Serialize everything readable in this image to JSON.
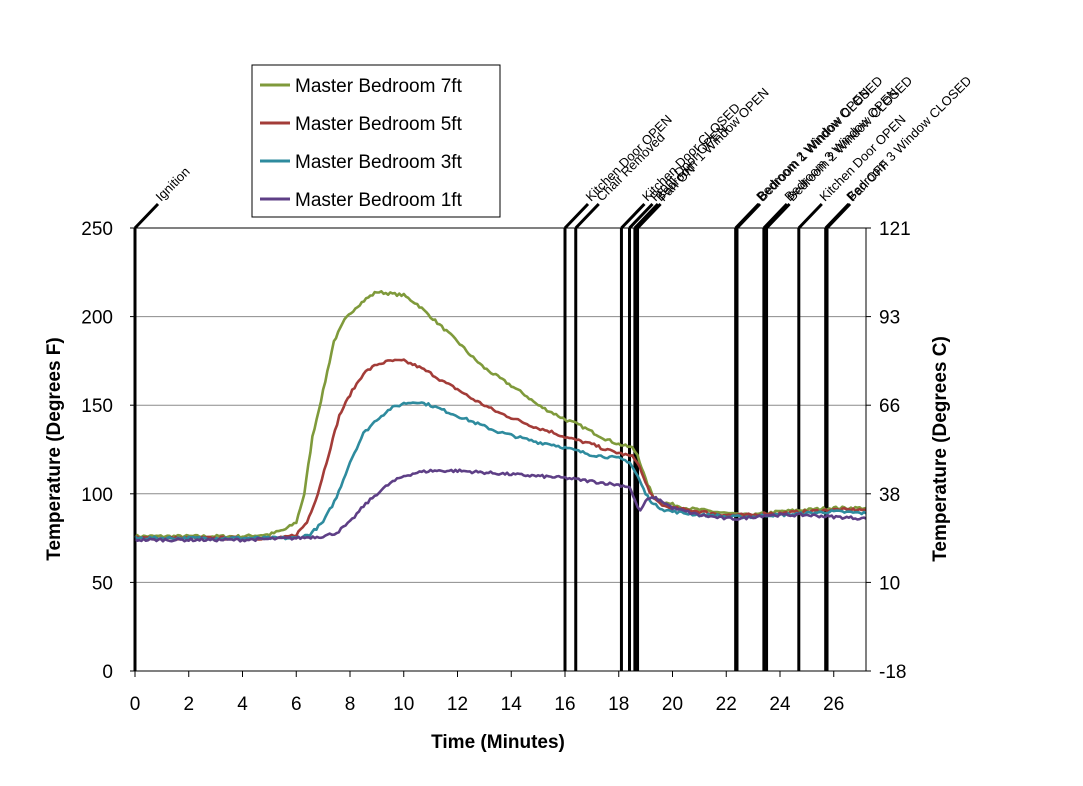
{
  "chart_data": {
    "type": "line",
    "xlabel": "Time (Minutes)",
    "ylabel": "Temperature (Degrees F)",
    "y2label": "Temperature (Degrees C)",
    "xlim": [
      0,
      27.2
    ],
    "ylim": [
      0,
      250
    ],
    "x_ticks": [
      0,
      2,
      4,
      6,
      8,
      10,
      12,
      14,
      16,
      18,
      20,
      22,
      24,
      26
    ],
    "y_ticks": [
      0,
      50,
      100,
      150,
      200,
      250
    ],
    "y2_ticks": [
      "-18",
      "10",
      "38",
      "66",
      "93",
      "121"
    ],
    "grid": "horizontal",
    "legend": "top-left",
    "series": [
      {
        "name": "Master Bedroom 7ft",
        "color": "#7F9A3B",
        "points": [
          [
            0,
            76
          ],
          [
            2,
            76
          ],
          [
            4,
            76
          ],
          [
            5,
            77
          ],
          [
            5.6,
            80
          ],
          [
            6,
            84
          ],
          [
            6.3,
            100
          ],
          [
            6.6,
            132
          ],
          [
            7,
            158
          ],
          [
            7.4,
            186
          ],
          [
            7.8,
            198
          ],
          [
            8.2,
            205
          ],
          [
            8.6,
            210
          ],
          [
            9,
            214
          ],
          [
            9.5,
            213
          ],
          [
            10,
            212
          ],
          [
            10.5,
            207
          ],
          [
            11,
            200
          ],
          [
            11.5,
            193
          ],
          [
            12,
            186
          ],
          [
            12.5,
            178
          ],
          [
            13,
            171
          ],
          [
            13.5,
            166
          ],
          [
            14,
            161
          ],
          [
            14.5,
            156
          ],
          [
            15,
            150
          ],
          [
            15.5,
            146
          ],
          [
            16,
            142
          ],
          [
            16.5,
            139
          ],
          [
            17,
            135
          ],
          [
            17.5,
            131
          ],
          [
            18,
            128
          ],
          [
            18.5,
            126
          ],
          [
            18.7,
            122
          ],
          [
            19,
            108
          ],
          [
            19.3,
            98
          ],
          [
            19.7,
            95
          ],
          [
            20,
            94
          ],
          [
            20.5,
            92
          ],
          [
            21,
            91
          ],
          [
            21.5,
            90
          ],
          [
            22,
            89
          ],
          [
            22.5,
            88
          ],
          [
            23,
            88
          ],
          [
            23.5,
            89
          ],
          [
            24,
            90
          ],
          [
            25,
            91
          ],
          [
            26,
            92
          ],
          [
            27.2,
            92
          ]
        ]
      },
      {
        "name": "Master Bedroom 5ft",
        "color": "#A33C38",
        "points": [
          [
            0,
            75
          ],
          [
            2,
            75
          ],
          [
            4,
            75
          ],
          [
            5.5,
            75
          ],
          [
            6,
            77
          ],
          [
            6.4,
            84
          ],
          [
            6.8,
            100
          ],
          [
            7.2,
            122
          ],
          [
            7.6,
            144
          ],
          [
            8,
            156
          ],
          [
            8.5,
            168
          ],
          [
            9,
            173
          ],
          [
            9.5,
            175
          ],
          [
            10,
            175
          ],
          [
            10.5,
            172
          ],
          [
            11,
            168
          ],
          [
            11.5,
            163
          ],
          [
            12,
            159
          ],
          [
            12.5,
            154
          ],
          [
            13,
            150
          ],
          [
            13.5,
            146
          ],
          [
            14,
            143
          ],
          [
            14.5,
            140
          ],
          [
            15,
            137
          ],
          [
            15.5,
            135
          ],
          [
            16,
            132
          ],
          [
            16.5,
            130
          ],
          [
            17,
            128
          ],
          [
            17.5,
            125
          ],
          [
            18,
            123
          ],
          [
            18.5,
            121
          ],
          [
            18.7,
            118
          ],
          [
            19,
            106
          ],
          [
            19.3,
            97
          ],
          [
            19.7,
            93
          ],
          [
            20,
            92
          ],
          [
            20.5,
            91
          ],
          [
            21,
            90
          ],
          [
            21.5,
            89
          ],
          [
            22,
            88
          ],
          [
            22.5,
            88
          ],
          [
            23,
            88
          ],
          [
            23.5,
            89
          ],
          [
            24,
            89
          ],
          [
            25,
            90
          ],
          [
            26,
            91
          ],
          [
            27.2,
            91
          ]
        ]
      },
      {
        "name": "Master Bedroom 3ft",
        "color": "#2E8B9E",
        "points": [
          [
            0,
            75
          ],
          [
            2,
            75
          ],
          [
            4,
            75
          ],
          [
            6,
            75
          ],
          [
            6.5,
            77
          ],
          [
            7,
            84
          ],
          [
            7.5,
            98
          ],
          [
            8,
            118
          ],
          [
            8.5,
            134
          ],
          [
            9,
            142
          ],
          [
            9.5,
            148
          ],
          [
            10,
            151
          ],
          [
            10.5,
            152
          ],
          [
            11,
            150
          ],
          [
            11.5,
            147
          ],
          [
            12,
            144
          ],
          [
            12.5,
            141
          ],
          [
            13,
            138
          ],
          [
            13.5,
            135
          ],
          [
            14,
            133
          ],
          [
            14.5,
            131
          ],
          [
            15,
            129
          ],
          [
            15.5,
            128
          ],
          [
            16,
            126
          ],
          [
            16.5,
            124
          ],
          [
            17,
            122
          ],
          [
            17.5,
            121
          ],
          [
            18,
            120
          ],
          [
            18.4,
            118
          ],
          [
            18.7,
            110
          ],
          [
            19,
            100
          ],
          [
            19.3,
            94
          ],
          [
            19.7,
            91
          ],
          [
            20,
            90
          ],
          [
            20.5,
            89
          ],
          [
            21,
            88
          ],
          [
            21.5,
            88
          ],
          [
            22,
            87
          ],
          [
            22.5,
            87
          ],
          [
            23,
            87
          ],
          [
            23.5,
            88
          ],
          [
            24,
            88
          ],
          [
            25,
            89
          ],
          [
            26,
            90
          ],
          [
            27.2,
            89
          ]
        ]
      },
      {
        "name": "Master Bedroom 1ft",
        "color": "#5E3F86",
        "points": [
          [
            0,
            74
          ],
          [
            2,
            74
          ],
          [
            4,
            74
          ],
          [
            6,
            75
          ],
          [
            7,
            76
          ],
          [
            7.5,
            78
          ],
          [
            8,
            84
          ],
          [
            8.5,
            93
          ],
          [
            9,
            100
          ],
          [
            9.5,
            106
          ],
          [
            10,
            110
          ],
          [
            10.5,
            112
          ],
          [
            11,
            113
          ],
          [
            12,
            113
          ],
          [
            13,
            112
          ],
          [
            14,
            111
          ],
          [
            15,
            110
          ],
          [
            16,
            109
          ],
          [
            16.5,
            108
          ],
          [
            17,
            107
          ],
          [
            17.5,
            106
          ],
          [
            18,
            105
          ],
          [
            18.4,
            104
          ],
          [
            18.6,
            96
          ],
          [
            18.8,
            90
          ],
          [
            19,
            96
          ],
          [
            19.3,
            98
          ],
          [
            19.7,
            95
          ],
          [
            20,
            92
          ],
          [
            20.5,
            90
          ],
          [
            21,
            88
          ],
          [
            21.5,
            87
          ],
          [
            22,
            86
          ],
          [
            22.5,
            86
          ],
          [
            23,
            87
          ],
          [
            23.5,
            88
          ],
          [
            24,
            88
          ],
          [
            25,
            88
          ],
          [
            26,
            87
          ],
          [
            27.2,
            86
          ]
        ]
      }
    ],
    "events": [
      {
        "label": "Ignition",
        "x": 0
      },
      {
        "label": "Kitchen Door OPEN",
        "x": 16.0
      },
      {
        "label": "Chair Removed",
        "x": 16.4
      },
      {
        "label": "Kitchen Door CLOSED",
        "x": 18.1
      },
      {
        "label": "Front Door OPEN",
        "x": 18.4
      },
      {
        "label": "Bedroom 1 Window OPEN",
        "x": 18.6
      },
      {
        "label": "Fan ON",
        "x": 18.7
      },
      {
        "label": "Bedroom 2 Window OPEN",
        "x": 22.35
      },
      {
        "label": "Bedroom 1 Window CLOSED",
        "x": 22.4
      },
      {
        "label": "Bedroom 3 Window OPEN",
        "x": 23.4
      },
      {
        "label": "Bedroom 2 Window CLOSED",
        "x": 23.5
      },
      {
        "label": "Kitchen Door OPEN",
        "x": 24.7
      },
      {
        "label": "Bedroom 3 Window CLOSED",
        "x": 25.7
      },
      {
        "label": "Fan OFF",
        "x": 25.75
      }
    ]
  }
}
